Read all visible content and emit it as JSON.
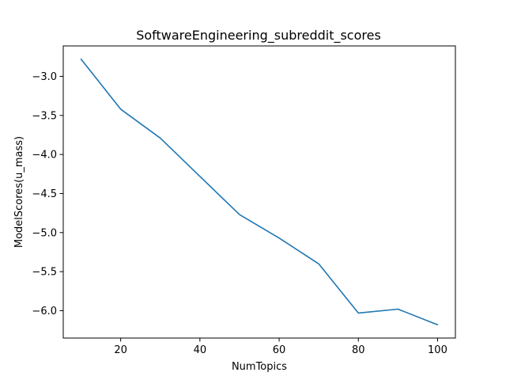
{
  "chart_data": {
    "type": "line",
    "title": "SoftwareEngineering_subreddit_scores",
    "xlabel": "NumTopics",
    "ylabel": "ModelScores(u_mass)",
    "x": [
      10,
      20,
      30,
      40,
      50,
      60,
      70,
      80,
      90,
      100
    ],
    "series": [
      {
        "values": [
          -2.78,
          -3.42,
          -3.79,
          -4.28,
          -4.77,
          -5.07,
          -5.4,
          -6.03,
          -5.98,
          -6.18
        ],
        "color": "#1f77b4"
      }
    ],
    "xlim": [
      5.5,
      104.5
    ],
    "ylim": [
      -6.35,
      -2.61
    ],
    "xticks": [
      20,
      40,
      60,
      80,
      100
    ],
    "xtick_labels": [
      "20",
      "40",
      "60",
      "80",
      "100"
    ],
    "yticks": [
      -3.0,
      -3.5,
      -4.0,
      -4.5,
      -5.0,
      -5.5,
      -6.0
    ],
    "ytick_labels": [
      "−3.0",
      "−3.5",
      "−4.0",
      "−4.5",
      "−5.0",
      "−5.5",
      "−6.0"
    ],
    "grid": false,
    "legend": "none"
  }
}
